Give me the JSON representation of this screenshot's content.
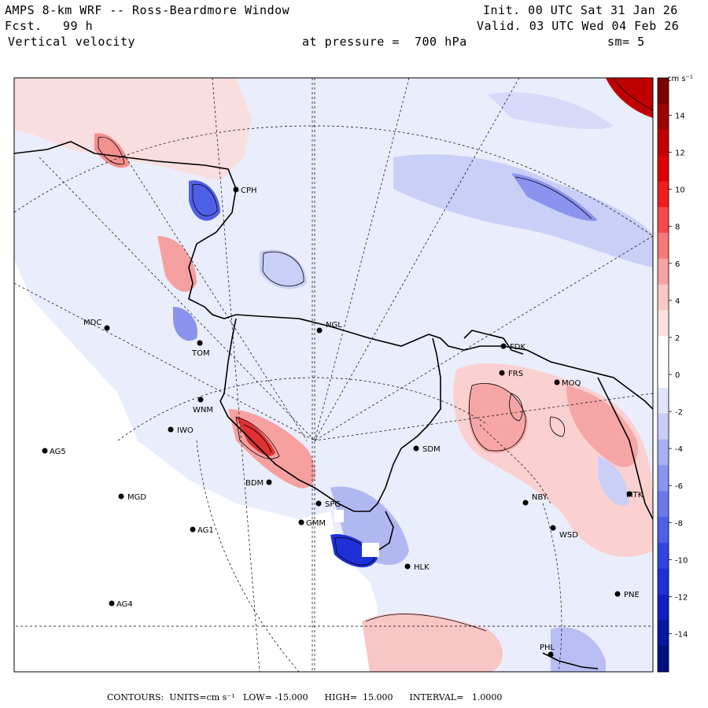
{
  "header": {
    "title": "AMPS 8-km WRF -- Ross-Beardmore Window",
    "fcst_label": "Fcst.",
    "fcst_value": "99 h",
    "field": "Vertical velocity",
    "init": "Init. 00 UTC Sat 31 Jan 26",
    "valid": "Valid. 03 UTC Wed 04 Feb 26",
    "pressure": "at pressure =  700 hPa",
    "smoothing": "sm= 5"
  },
  "colorbar": {
    "units": "cm s⁻¹",
    "labels": [
      "14",
      "12",
      "10",
      "8",
      "6",
      "4",
      "2",
      "0",
      "-2",
      "-4",
      "-6",
      "-8",
      "-10",
      "-12",
      "-14"
    ],
    "colors": [
      "#7a0000",
      "#a00000",
      "#c00000",
      "#e00000",
      "#f21c1c",
      "#f64a4a",
      "#f87878",
      "#f9a3a3",
      "#fbc7c7",
      "#fde1e1",
      "#ffffff",
      "#ffffff",
      "#e1e4fb",
      "#c7ccf8",
      "#a8b0f2",
      "#8a93ee",
      "#6d78ea",
      "#5060e6",
      "#3346e2",
      "#1f30d8",
      "#1020c0",
      "#0818a0",
      "#001080"
    ]
  },
  "stations": [
    {
      "code": "CPH"
    },
    {
      "code": "MDC"
    },
    {
      "code": "NGL"
    },
    {
      "code": "TOM"
    },
    {
      "code": "FDK"
    },
    {
      "code": "FRS"
    },
    {
      "code": "MOQ"
    },
    {
      "code": "WNM"
    },
    {
      "code": "IWO"
    },
    {
      "code": "AG5"
    },
    {
      "code": "SDM"
    },
    {
      "code": "BDM"
    },
    {
      "code": "MGD"
    },
    {
      "code": "SPG"
    },
    {
      "code": "NBY"
    },
    {
      "code": "MTK"
    },
    {
      "code": "AG1"
    },
    {
      "code": "GMM"
    },
    {
      "code": "WSD"
    },
    {
      "code": "HLK"
    },
    {
      "code": "AG4"
    },
    {
      "code": "PNE"
    },
    {
      "code": "PHL"
    }
  ],
  "footer": {
    "contours": "CONTOURS:  UNITS=cm s⁻¹",
    "low": "LOW= -15.000",
    "high": "HIGH=  15.000",
    "interval": "INTERVAL=   1.0000"
  }
}
